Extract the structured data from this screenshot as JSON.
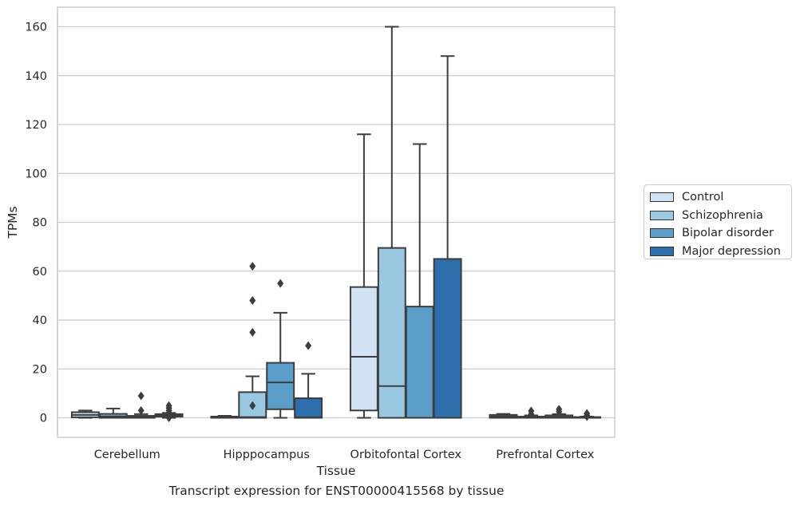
{
  "chart_data": {
    "type": "box",
    "xlabel": "Tissue",
    "ylabel": "TPMs",
    "caption": "Transcript expression for ENST00000415568 by tissue",
    "ylim": [
      -8,
      168
    ],
    "yticks": [
      0,
      20,
      40,
      60,
      80,
      100,
      120,
      140,
      160
    ],
    "grid": true,
    "legend_position": "right",
    "categories": [
      "Cerebellum",
      "Hipppocampus",
      "Orbitofontal Cortex",
      "Prefrontal Cortex"
    ],
    "series": [
      {
        "name": "Control",
        "color": "#d1e2f2",
        "boxes": [
          {
            "low": 0,
            "q1": 0.2,
            "median": 1.2,
            "q3": 2.3,
            "high": 3,
            "outliers": []
          },
          {
            "low": 0,
            "q1": 0,
            "median": 0.1,
            "q3": 0.5,
            "high": 0.8,
            "outliers": []
          },
          {
            "low": 0,
            "q1": 3,
            "median": 25,
            "q3": 53.5,
            "high": 116,
            "outliers": []
          },
          {
            "low": 0,
            "q1": 0,
            "median": 0.6,
            "q3": 1.2,
            "high": 1.6,
            "outliers": []
          }
        ]
      },
      {
        "name": "Schizophrenia",
        "color": "#9ac8e0",
        "boxes": [
          {
            "low": 0,
            "q1": 0,
            "median": 0.6,
            "q3": 1.6,
            "high": 3.8,
            "outliers": []
          },
          {
            "low": 0,
            "q1": 0,
            "median": 0.3,
            "q3": 10.5,
            "high": 17,
            "outliers": [
              5,
              35,
              48,
              62
            ]
          },
          {
            "low": 0,
            "q1": 0,
            "median": 13,
            "q3": 69.5,
            "high": 160,
            "outliers": []
          },
          {
            "low": 0,
            "q1": 0,
            "median": 0.1,
            "q3": 0.5,
            "high": 1,
            "outliers": [
              1.5,
              2.8
            ]
          }
        ]
      },
      {
        "name": "Bipolar disorder",
        "color": "#5a9ec9",
        "boxes": [
          {
            "low": 0,
            "q1": 0,
            "median": 0.2,
            "q3": 0.8,
            "high": 1.5,
            "outliers": [
              3,
              9
            ]
          },
          {
            "low": 0,
            "q1": 3.5,
            "median": 14.5,
            "q3": 22.5,
            "high": 43,
            "outliers": [
              55
            ]
          },
          {
            "low": 0,
            "q1": 0,
            "median": 0,
            "q3": 45.5,
            "high": 112,
            "outliers": []
          },
          {
            "low": 0,
            "q1": 0,
            "median": 0.3,
            "q3": 1,
            "high": 1.5,
            "outliers": [
              2.5,
              3.5
            ]
          }
        ]
      },
      {
        "name": "Major depression",
        "color": "#2d6fac",
        "boxes": [
          {
            "low": 0,
            "q1": 0.5,
            "median": 1,
            "q3": 1.5,
            "high": 2,
            "outliers": [
              0,
              1,
              2,
              3,
              4,
              5
            ]
          },
          {
            "low": 0,
            "q1": 0,
            "median": 0.2,
            "q3": 8,
            "high": 18,
            "outliers": [
              29.5
            ]
          },
          {
            "low": 0,
            "q1": 0,
            "median": 0,
            "q3": 65,
            "high": 148,
            "outliers": []
          },
          {
            "low": 0,
            "q1": 0,
            "median": 0,
            "q3": 0.3,
            "high": 0.5,
            "outliers": [
              0.5,
              1,
              1.8
            ]
          }
        ]
      }
    ]
  }
}
